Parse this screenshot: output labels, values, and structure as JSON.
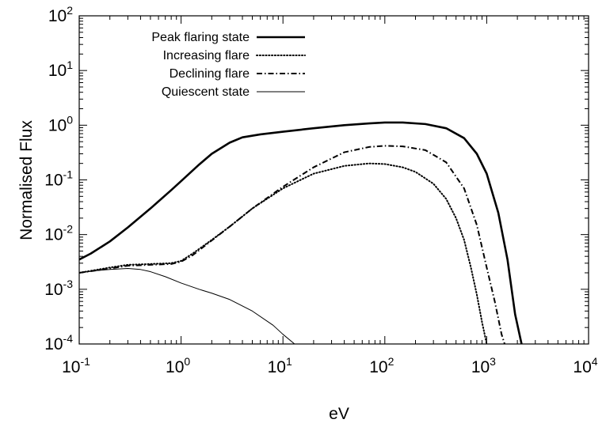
{
  "chart_data": {
    "type": "line",
    "title": "",
    "xlabel": "eV",
    "ylabel": "Normalised Flux",
    "x_scale": "log",
    "y_scale": "log",
    "xlim": [
      0.1,
      10000
    ],
    "ylim": [
      0.0001,
      100
    ],
    "grid": false,
    "legend_position": "top-left",
    "x_ticks": [
      {
        "base": "10",
        "exp": "-1",
        "value": 0.1
      },
      {
        "base": "10",
        "exp": "0",
        "value": 1
      },
      {
        "base": "10",
        "exp": "1",
        "value": 10
      },
      {
        "base": "10",
        "exp": "2",
        "value": 100
      },
      {
        "base": "10",
        "exp": "3",
        "value": 1000
      },
      {
        "base": "10",
        "exp": "4",
        "value": 10000
      }
    ],
    "y_ticks": [
      {
        "base": "10",
        "exp": "-4",
        "value": 0.0001
      },
      {
        "base": "10",
        "exp": "-3",
        "value": 0.001
      },
      {
        "base": "10",
        "exp": "-2",
        "value": 0.01
      },
      {
        "base": "10",
        "exp": "-1",
        "value": 0.1
      },
      {
        "base": "10",
        "exp": "0",
        "value": 1
      },
      {
        "base": "10",
        "exp": "1",
        "value": 10
      },
      {
        "base": "10",
        "exp": "2",
        "value": 100
      }
    ],
    "series": [
      {
        "name": "Peak flaring state",
        "style": "solid-thick",
        "color": "#000000",
        "x": [
          0.1,
          0.13,
          0.2,
          0.3,
          0.5,
          0.8,
          1.0,
          1.5,
          2.0,
          3.0,
          4.0,
          6.0,
          10,
          20,
          40,
          70,
          100,
          150,
          250,
          400,
          600,
          800,
          1000,
          1300,
          1600,
          1900,
          2200
        ],
        "y": [
          0.0035,
          0.0045,
          0.0075,
          0.0135,
          0.03,
          0.065,
          0.095,
          0.19,
          0.3,
          0.48,
          0.6,
          0.68,
          0.76,
          0.88,
          1.0,
          1.08,
          1.12,
          1.12,
          1.05,
          0.88,
          0.58,
          0.3,
          0.13,
          0.025,
          0.0035,
          0.00035,
          0.0001
        ]
      },
      {
        "name": "Increasing flare",
        "style": "dotted",
        "color": "#000000",
        "x": [
          0.1,
          0.2,
          0.3,
          0.5,
          0.8,
          1.0,
          1.3,
          2.0,
          3.0,
          5.0,
          10,
          20,
          40,
          70,
          100,
          150,
          200,
          300,
          400,
          500,
          600,
          700,
          800,
          900,
          1000
        ],
        "y": [
          0.002,
          0.0025,
          0.0028,
          0.0029,
          0.003,
          0.0033,
          0.0045,
          0.008,
          0.014,
          0.03,
          0.07,
          0.13,
          0.18,
          0.2,
          0.195,
          0.17,
          0.14,
          0.085,
          0.045,
          0.02,
          0.008,
          0.0025,
          0.0008,
          0.00025,
          0.0001
        ]
      },
      {
        "name": "Declining flare",
        "style": "dash-dot",
        "color": "#000000",
        "x": [
          0.1,
          0.2,
          0.3,
          0.5,
          0.8,
          1.0,
          1.3,
          2.0,
          3.0,
          5.0,
          10,
          20,
          40,
          70,
          100,
          150,
          250,
          400,
          600,
          800,
          1000,
          1200,
          1400,
          1500
        ],
        "y": [
          0.002,
          0.0024,
          0.0027,
          0.0028,
          0.0029,
          0.0032,
          0.0042,
          0.0078,
          0.014,
          0.03,
          0.075,
          0.17,
          0.32,
          0.4,
          0.42,
          0.41,
          0.35,
          0.21,
          0.07,
          0.015,
          0.0025,
          0.0006,
          0.00015,
          0.0001
        ]
      },
      {
        "name": "Quiescent state",
        "style": "solid-thin",
        "color": "#000000",
        "x": [
          0.1,
          0.15,
          0.2,
          0.3,
          0.4,
          0.5,
          0.7,
          1.0,
          1.5,
          2.0,
          3.0,
          5.0,
          8.0,
          10,
          13
        ],
        "y": [
          0.002,
          0.0022,
          0.0023,
          0.0024,
          0.0023,
          0.0021,
          0.0017,
          0.0013,
          0.001,
          0.00085,
          0.00065,
          0.0004,
          0.00022,
          0.00015,
          0.0001
        ]
      }
    ]
  }
}
